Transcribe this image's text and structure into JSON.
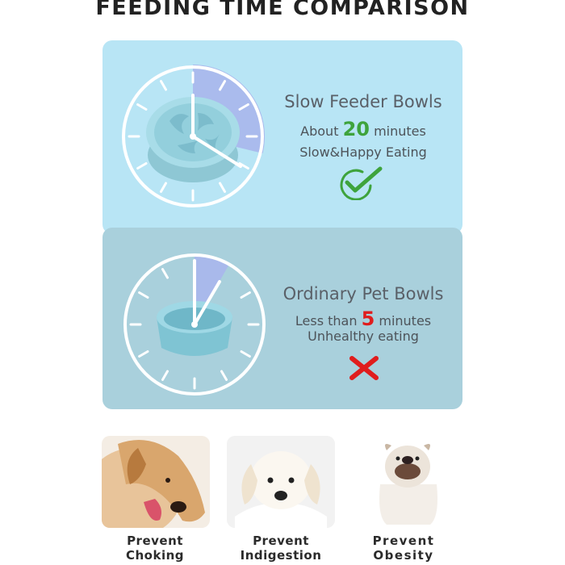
{
  "title": "FEEDING TIME COMPARISON",
  "slow": {
    "heading": "Slow Feeder Bowls",
    "about_prefix": "About",
    "minutes_value": "20",
    "minutes_suffix": "minutes",
    "subtitle": "Slow&Happy Eating",
    "status_icon": "checkmark-icon",
    "color": "#3ea33c"
  },
  "ordinary": {
    "heading": "Ordinary Pet Bowls",
    "less_prefix": "Less than",
    "minutes_value": "5",
    "minutes_suffix": "minutes",
    "subtitle": "Unhealthy eating",
    "status_icon": "cross-icon",
    "color": "#e01d1d"
  },
  "benefits": [
    {
      "line1": "Prevent",
      "line2": "Choking",
      "icon": "dog-eating-photo"
    },
    {
      "line1": "Prevent",
      "line2": "Indigestion",
      "icon": "puppy-photo"
    },
    {
      "line1": "Prevent",
      "line2": "Obesity",
      "icon": "bulldog-photo"
    }
  ]
}
